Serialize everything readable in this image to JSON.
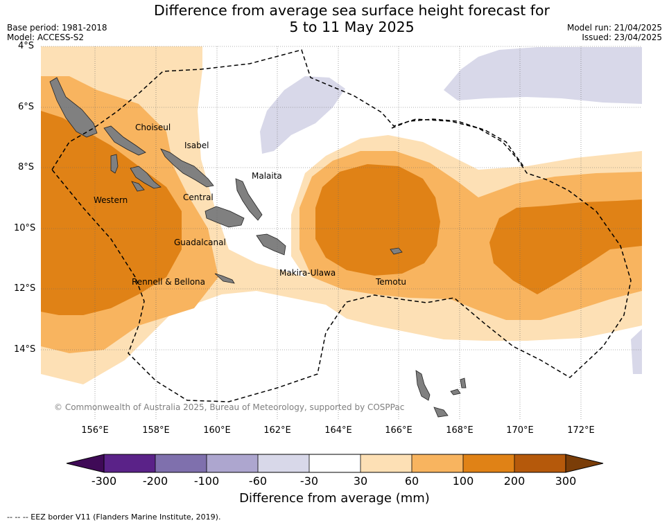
{
  "header": {
    "title_line1": "Difference from average sea surface height forecast for",
    "title_line2": "5 to 11 May 2025",
    "base_period": "Base period: 1981-2018",
    "model": "Model: ACCESS-S2",
    "model_run": "Model run: 21/04/2025",
    "issued": "Issued: 23/04/2025"
  },
  "axes": {
    "lat_labels": [
      "4°S",
      "6°S",
      "8°S",
      "10°S",
      "12°S",
      "14°S"
    ],
    "lon_labels": [
      "156°E",
      "158°E",
      "160°E",
      "162°E",
      "164°E",
      "166°E",
      "168°E",
      "170°E",
      "172°E"
    ]
  },
  "places": [
    "Choiseul",
    "Isabel",
    "Malaita",
    "Western",
    "Central",
    "Guadalcanal",
    "Makira-Ulawa",
    "Rennell & Bellona",
    "Temotu"
  ],
  "copyright": "© Commonwealth of Australia 2025, Bureau of Meteorology, supported by COSPPac",
  "colorbar": {
    "ticks": [
      "-300",
      "-200",
      "-100",
      "-60",
      "-30",
      "30",
      "60",
      "100",
      "200",
      "300"
    ],
    "title": "Difference from average (mm)",
    "colors": [
      "#3f0a57",
      "#5a2288",
      "#7f70ad",
      "#ada6cf",
      "#d8d8e9",
      "#ffffff",
      "#fde0b5",
      "#f8b45f",
      "#e08216",
      "#b5590b",
      "#7a3d08"
    ]
  },
  "footer": "--  --  -- EEZ border V11 (Flanders Marine Institute, 2019).",
  "colors": {
    "light_orange": "#fde0b5",
    "mid_orange": "#f8b45f",
    "dark_orange": "#e08216",
    "light_purple": "#d8d8e9",
    "land": "#808080"
  }
}
